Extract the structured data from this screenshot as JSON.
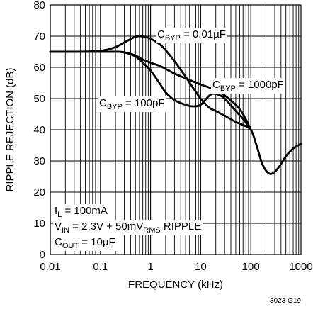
{
  "chart_data": {
    "type": "line",
    "xlabel": "FREQUENCY (kHz)",
    "ylabel": "RIPPLE REJECTION (dB)",
    "x_scale": "log",
    "xlim": [
      0.01,
      1000
    ],
    "ylim": [
      0,
      80
    ],
    "grid": true,
    "x_ticks": [
      {
        "value": 0.01,
        "label": "0.01"
      },
      {
        "value": 0.1,
        "label": "0.1"
      },
      {
        "value": 1,
        "label": "1"
      },
      {
        "value": 10,
        "label": "10"
      },
      {
        "value": 100,
        "label": "100"
      },
      {
        "value": 1000,
        "label": "1000"
      }
    ],
    "y_ticks": [
      {
        "value": 0,
        "label": "0"
      },
      {
        "value": 10,
        "label": "10"
      },
      {
        "value": 20,
        "label": "20"
      },
      {
        "value": 30,
        "label": "30"
      },
      {
        "value": 40,
        "label": "40"
      },
      {
        "value": 50,
        "label": "50"
      },
      {
        "value": 60,
        "label": "60"
      },
      {
        "value": 70,
        "label": "70"
      },
      {
        "value": 80,
        "label": "80"
      }
    ],
    "series": [
      {
        "label": {
          "main": "C",
          "sub": "BYP",
          "rest": " = 0.01µF"
        },
        "x": [
          0.01,
          0.03,
          0.1,
          0.2,
          0.3,
          0.5,
          0.7,
          1,
          1.5,
          2,
          3,
          5,
          7,
          10,
          15,
          20,
          30,
          50,
          70,
          100,
          130,
          170,
          230,
          300,
          400,
          500,
          700,
          1000
        ],
        "y": [
          65,
          65,
          65.3,
          66.5,
          68,
          69.8,
          69.9,
          69.2,
          67.5,
          65.5,
          62,
          57,
          53.5,
          50,
          47,
          46,
          44.5,
          42.5,
          41.5,
          40,
          35,
          29,
          26,
          26.5,
          29,
          31.5,
          34,
          35.5
        ]
      },
      {
        "label": {
          "main": "C",
          "sub": "BYP",
          "rest": " = 1000pF"
        },
        "x": [
          0.01,
          0.03,
          0.1,
          0.2,
          0.3,
          0.5,
          0.7,
          1,
          1.5,
          2,
          3,
          5,
          7,
          10,
          15,
          20,
          30,
          50,
          70,
          100
        ],
        "y": [
          65,
          65,
          65,
          65,
          64.8,
          63.8,
          62.5,
          61.5,
          60.5,
          59.5,
          58,
          56.5,
          55.5,
          54.5,
          53.5,
          52.5,
          51,
          48,
          45,
          40
        ]
      },
      {
        "label": {
          "main": "C",
          "sub": "BYP",
          "rest": " = 100pF"
        },
        "x": [
          0.01,
          0.03,
          0.1,
          0.2,
          0.3,
          0.5,
          0.7,
          1,
          1.5,
          2,
          3,
          5,
          7,
          10,
          15,
          20,
          30,
          50,
          70,
          100
        ],
        "y": [
          65,
          65,
          65,
          65,
          64.8,
          63.5,
          61.5,
          59,
          55,
          52,
          49.5,
          48,
          47.5,
          48,
          51,
          51.5,
          50,
          46,
          43.5,
          40
        ]
      }
    ],
    "conditions": [
      {
        "main": "I",
        "sub": "L",
        "rest": " = 100mA",
        "rest2": ""
      },
      {
        "main": "V",
        "sub": "IN",
        "rest": " = 2.3V + 50mV",
        "sub2": "RMS",
        "rest2": " RIPPLE"
      },
      {
        "main": "C",
        "sub": "OUT",
        "rest": " = 10µF",
        "rest2": ""
      }
    ],
    "figure_id": "3023 G19"
  }
}
